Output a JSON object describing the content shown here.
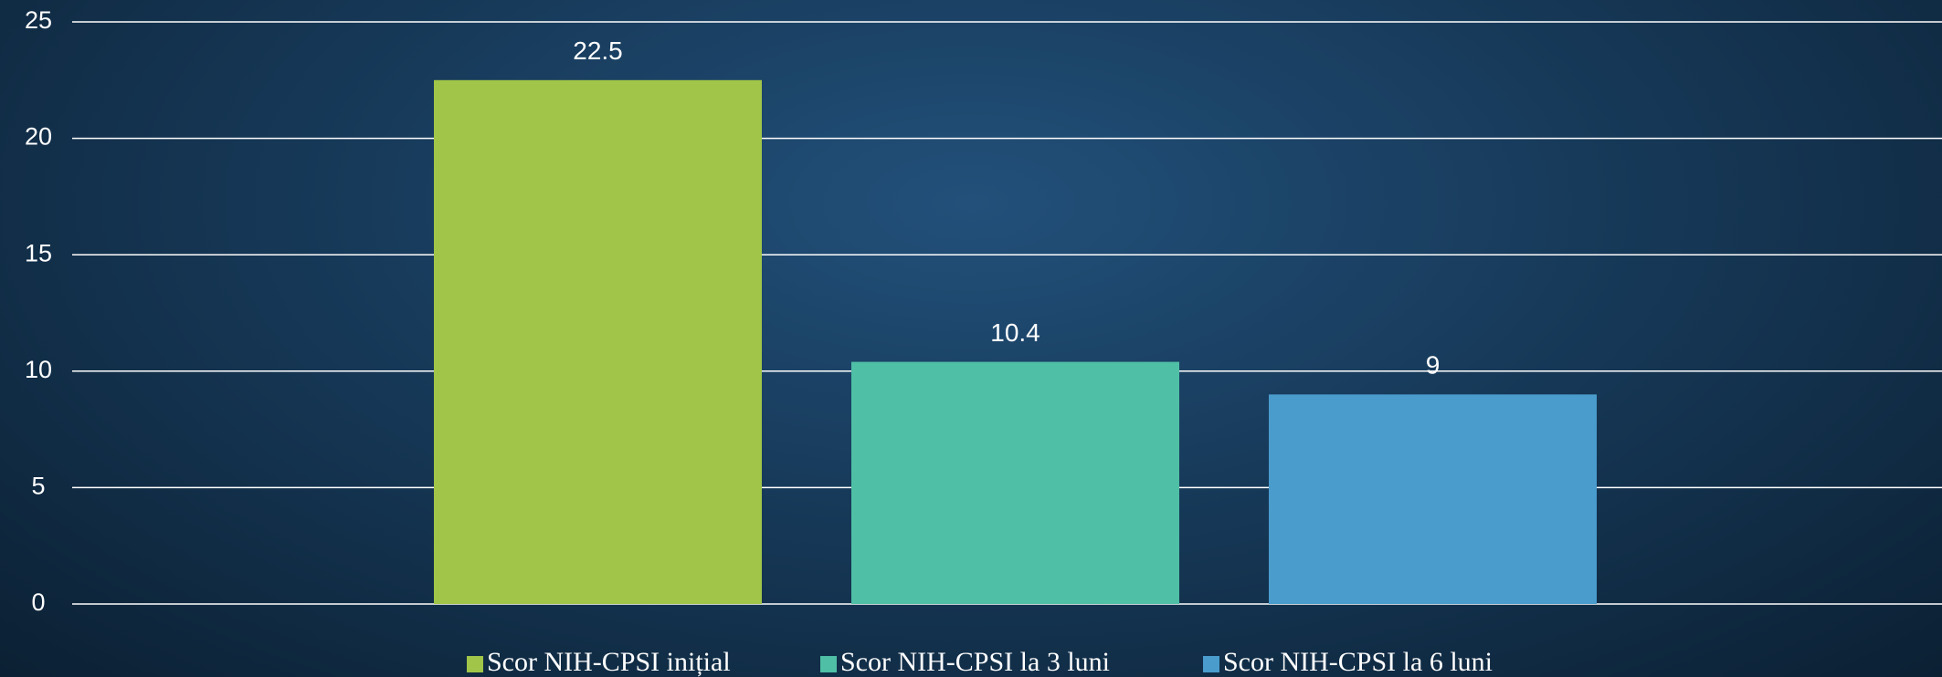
{
  "chart_data": {
    "type": "bar",
    "series": [
      {
        "name": "Scor NIH-CPSI inițial",
        "color": "#a1c548",
        "values": [
          22.5
        ]
      },
      {
        "name": "Scor NIH-CPSI la 3 luni",
        "color": "#4fbfa5",
        "values": [
          10.4
        ]
      },
      {
        "name": "Scor NIH-CPSI la 6 luni",
        "color": "#4a9ccd",
        "values": [
          9
        ]
      }
    ],
    "ylim": [
      0,
      25
    ],
    "yticks": [
      0,
      5,
      10,
      15,
      20,
      25
    ],
    "grid": true,
    "legend": "bottom"
  }
}
